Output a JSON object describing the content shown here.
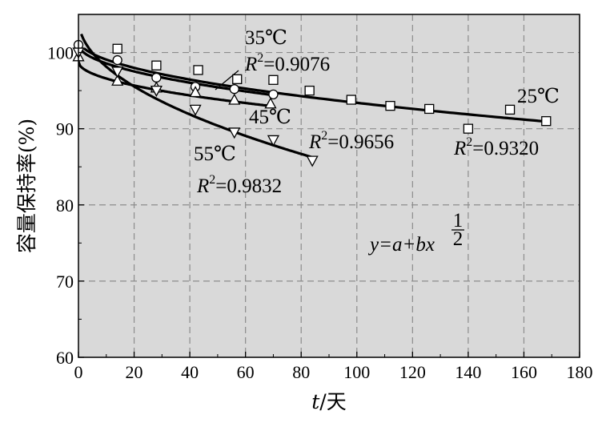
{
  "chart_data": {
    "type": "scatter",
    "xlabel": {
      "var": "t",
      "unit": "/天"
    },
    "ylabel": "容量保持率(%)",
    "xlim": [
      0,
      180
    ],
    "ylim": [
      60,
      105
    ],
    "x_ticks": [
      0,
      20,
      40,
      60,
      80,
      100,
      120,
      140,
      160,
      180
    ],
    "y_ticks": [
      60,
      70,
      80,
      90,
      100
    ],
    "grid": true,
    "background": "#d9d9d9",
    "equation": {
      "main": "y=a+bx",
      "exp_num": "1",
      "exp_den": "2"
    },
    "series": [
      {
        "name": "25℃",
        "marker": "square",
        "r2_prefix": "R",
        "r2_sup": "2",
        "r2_value": "=0.9320",
        "points": [
          [
            14,
            100.5
          ],
          [
            28,
            98.3
          ],
          [
            43,
            97.7
          ],
          [
            57,
            96.5
          ],
          [
            70,
            96.4
          ],
          [
            83,
            95
          ],
          [
            98,
            93.8
          ],
          [
            112,
            93
          ],
          [
            126,
            92.6
          ],
          [
            140,
            90
          ],
          [
            155,
            92.5
          ],
          [
            168,
            91
          ]
        ],
        "fit": {
          "a": 101.7,
          "b": -0.83,
          "x_start": 2,
          "x_end": 168
        }
      },
      {
        "name": "35℃",
        "marker": "circle",
        "r2_prefix": "R",
        "r2_sup": "2",
        "r2_value": "=0.9076",
        "points": [
          [
            0,
            101
          ],
          [
            14,
            99
          ],
          [
            28,
            96.7
          ],
          [
            42,
            95.5
          ],
          [
            56,
            95.2
          ],
          [
            70,
            94.5
          ]
        ],
        "fit": {
          "a": 101.1,
          "b": -0.8,
          "x_start": 0,
          "x_end": 70
        }
      },
      {
        "name": "45℃",
        "marker": "triangle-up",
        "r2_prefix": "R",
        "r2_sup": "2",
        "r2_value": "=0.9656",
        "points": [
          [
            0,
            99.5
          ],
          [
            14,
            96.3
          ],
          [
            28,
            95.4
          ],
          [
            42,
            94.8
          ],
          [
            56,
            93.8
          ],
          [
            69,
            93.3
          ]
        ],
        "fit": {
          "a": 98.8,
          "b": -0.7,
          "x_start": 0,
          "x_end": 70
        }
      },
      {
        "name": "55℃",
        "marker": "triangle-down",
        "r2_prefix": "R",
        "r2_sup": "2",
        "r2_value": "=0.9832",
        "points": [
          [
            0,
            100
          ],
          [
            14,
            97.5
          ],
          [
            28,
            95
          ],
          [
            42,
            92.5
          ],
          [
            56,
            89.5
          ],
          [
            70,
            88.5
          ],
          [
            84,
            85.8
          ]
        ],
        "fit": {
          "a": 104.4,
          "b": -1.98,
          "x_start": 1,
          "x_end": 84
        }
      }
    ]
  }
}
